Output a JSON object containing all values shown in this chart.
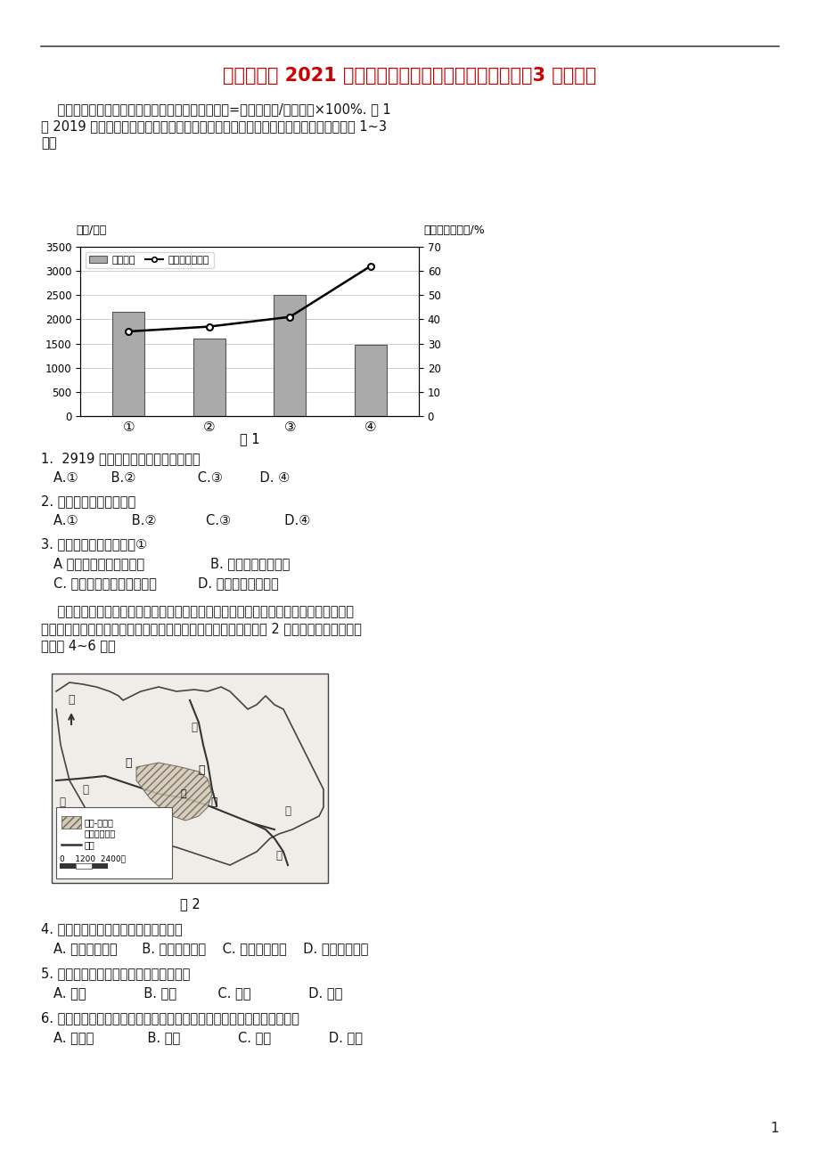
{
  "title": "广西南宁市 2021 届高三地理下学期第一次适应性测试（3 月）试题",
  "title_color": "#CC0000",
  "background_color": "#FFFFFF",
  "page_number": "1",
  "intro_text_lines": [
    "    净流入人口反映了城市的吸引力，净流入人口占比=净流入人口/常住人口×100%. 图 1",
    "为 2019 年北京、上海、广州和深圳四城市常住人口和净流入人口占比统计。据此完成 1~3",
    "题。"
  ],
  "chart1": {
    "caption": "图 1",
    "categories": [
      "①",
      "②",
      "③",
      "④"
    ],
    "bar_values": [
      2150,
      1600,
      2500,
      1480
    ],
    "line_values": [
      35,
      37,
      41,
      62
    ],
    "left_ylabel": "人口/万人",
    "right_ylabel": "净流入人口占比/%",
    "left_yticks": [
      0,
      500,
      1000,
      1500,
      2000,
      2500,
      3000,
      3500
    ],
    "right_yticks": [
      0,
      10,
      20,
      30,
      40,
      50,
      60,
      70
    ],
    "legend_bar": "常住人口",
    "legend_line": "净流入人口占比",
    "bar_color": "#aaaaaa",
    "line_color": "#000000"
  },
  "q1_text": "1.  2919 年，净流入人口最多的城市是",
  "q1_opts": [
    "A.①",
    "B.②",
    "C.③",
    "D. ④"
  ],
  "q1_spaces": [
    "        ",
    "               ",
    "         ",
    ""
  ],
  "q2_text": "2. 图中数码代表深圳的是",
  "q2_opts": [
    "A.①",
    "B.②",
    "C.③",
    "D.④"
  ],
  "q2_spaces": [
    "             ",
    "            ",
    "             ",
    ""
  ],
  "q3_text": "3. 人口大量净流入使城市①",
  "q3_opts_ab": [
    "A 环境人口容量明显下降",
    "B. 老龄人口比重下降"
  ],
  "q3_opts_cd": [
    "C. 适宜发展劳动密集型工业",
    "D. 就业压力得到缓解"
  ],
  "intro2_lines": [
    "    赊店镇位于河南省西南部。该镇始于汉、明、清时期中原、江南效省货物在此集散，商",
    "业鼎盛。后因运输枢组转移，繁荣数百年的商业巨镇逐渐衰落。图 2 示意赊店古镇位置。据",
    "此完成 4~6 题。"
  ],
  "q4_text": "4. 明清时期，赊店镇兴起的主要原因是",
  "q4_opts": "A. 冰陆转运便利      B. 农业物产丰富    C. 人口流动频繁    D. 行政中心所在",
  "q5_text": "5. 游咸丰时期，该镇商镇集中布局在图中",
  "q5_opts": [
    "A. 甲处",
    "B. 乙处",
    "C. 丙处",
    "D. 丁处"
  ],
  "q5_spaces": [
    "              ",
    "          ",
    "              ",
    ""
  ],
  "q6_text": "6. 明清时期，来自江南的大批货物在该镇集散，其中最主要的货物可能是",
  "q6_opts": [
    "A. 柑橘：",
    "B. 海鲜",
    "C. 原木",
    "D. 茶叶"
  ],
  "q6_spaces": [
    "             ",
    "              ",
    "              ",
    ""
  ],
  "fig2_caption": "图 2",
  "map_legend_line1": "清成-丰时期",
  "map_legend_line2": "赊店镇范围圈",
  "map_legend_river": "河流",
  "map_scale": "0    1200  2400米",
  "map_north": "北",
  "map_labels": {
    "jia": "甲",
    "yi": "乙",
    "bing": "丙",
    "ding": "丁",
    "he1": "河",
    "he2": "河",
    "he3": "河",
    "he4": "河",
    "zuo": "泌"
  }
}
